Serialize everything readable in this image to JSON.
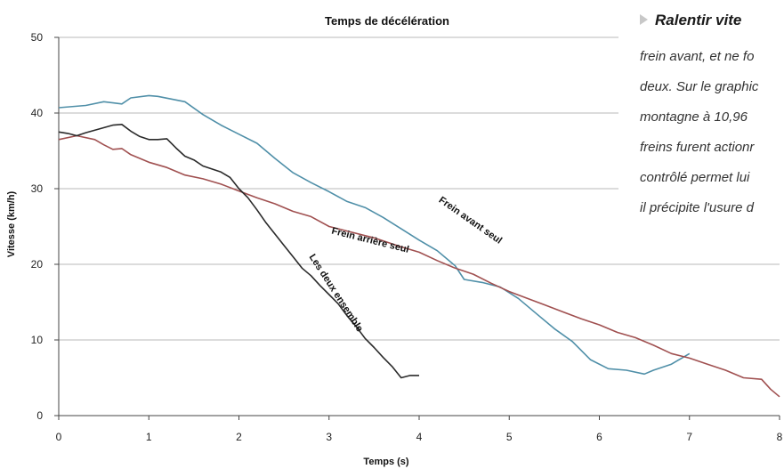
{
  "chart_data": {
    "type": "line",
    "title": "Temps de décélération",
    "xlabel": "Temps (s)",
    "ylabel": "Vitesse (km/h)",
    "xlim": [
      0,
      8
    ],
    "ylim": [
      0,
      50
    ],
    "xticks": [
      0,
      1,
      2,
      3,
      4,
      5,
      6,
      7,
      8
    ],
    "yticks": [
      0,
      10,
      20,
      30,
      40,
      50
    ],
    "grid": "horizontal",
    "series": [
      {
        "name": "Frein avant seul",
        "color": "#4f8fa8",
        "label_pos": [
          4.55,
          25.5
        ],
        "label_angle": 35,
        "points": [
          [
            0.0,
            40.7
          ],
          [
            0.3,
            41.0
          ],
          [
            0.5,
            41.5
          ],
          [
            0.7,
            41.2
          ],
          [
            0.8,
            42.0
          ],
          [
            1.0,
            42.3
          ],
          [
            1.1,
            42.2
          ],
          [
            1.4,
            41.5
          ],
          [
            1.6,
            39.8
          ],
          [
            1.8,
            38.4
          ],
          [
            2.0,
            37.2
          ],
          [
            2.2,
            36.0
          ],
          [
            2.4,
            34.0
          ],
          [
            2.6,
            32.1
          ],
          [
            2.8,
            30.8
          ],
          [
            3.0,
            29.6
          ],
          [
            3.2,
            28.3
          ],
          [
            3.4,
            27.5
          ],
          [
            3.6,
            26.2
          ],
          [
            3.8,
            24.7
          ],
          [
            4.0,
            23.2
          ],
          [
            4.2,
            21.8
          ],
          [
            4.4,
            19.8
          ],
          [
            4.5,
            18.0
          ],
          [
            4.7,
            17.6
          ],
          [
            4.9,
            17.0
          ],
          [
            5.1,
            15.5
          ],
          [
            5.3,
            13.5
          ],
          [
            5.5,
            11.5
          ],
          [
            5.7,
            9.8
          ],
          [
            5.9,
            7.4
          ],
          [
            6.1,
            6.2
          ],
          [
            6.3,
            6.0
          ],
          [
            6.5,
            5.5
          ],
          [
            6.6,
            6.0
          ],
          [
            6.8,
            6.8
          ],
          [
            6.9,
            7.5
          ],
          [
            7.0,
            8.2
          ]
        ]
      },
      {
        "name": "Frein arrière seul",
        "color": "#a05050",
        "label_pos": [
          3.45,
          22.8
        ],
        "label_angle": 14,
        "points": [
          [
            0.0,
            36.5
          ],
          [
            0.2,
            37.0
          ],
          [
            0.4,
            36.5
          ],
          [
            0.5,
            35.8
          ],
          [
            0.6,
            35.2
          ],
          [
            0.7,
            35.3
          ],
          [
            0.8,
            34.5
          ],
          [
            1.0,
            33.5
          ],
          [
            1.2,
            32.8
          ],
          [
            1.4,
            31.8
          ],
          [
            1.6,
            31.3
          ],
          [
            1.8,
            30.6
          ],
          [
            2.0,
            29.7
          ],
          [
            2.2,
            28.8
          ],
          [
            2.4,
            28.0
          ],
          [
            2.6,
            27.0
          ],
          [
            2.8,
            26.3
          ],
          [
            3.0,
            25.0
          ],
          [
            3.2,
            24.4
          ],
          [
            3.5,
            23.5
          ],
          [
            3.8,
            22.3
          ],
          [
            4.0,
            21.6
          ],
          [
            4.2,
            20.5
          ],
          [
            4.4,
            19.5
          ],
          [
            4.6,
            18.7
          ],
          [
            4.8,
            17.5
          ],
          [
            5.0,
            16.4
          ],
          [
            5.2,
            15.5
          ],
          [
            5.4,
            14.6
          ],
          [
            5.6,
            13.7
          ],
          [
            5.8,
            12.8
          ],
          [
            6.0,
            12.0
          ],
          [
            6.2,
            11.0
          ],
          [
            6.4,
            10.3
          ],
          [
            6.6,
            9.3
          ],
          [
            6.8,
            8.2
          ],
          [
            7.0,
            7.6
          ],
          [
            7.2,
            6.8
          ],
          [
            7.4,
            6.0
          ],
          [
            7.6,
            5.0
          ],
          [
            7.8,
            4.8
          ],
          [
            7.9,
            3.5
          ],
          [
            8.0,
            2.5
          ]
        ]
      },
      {
        "name": "Les deux ensemble",
        "color": "#2a2a2a",
        "label_pos": [
          3.05,
          16.0
        ],
        "label_angle": 57,
        "points": [
          [
            0.0,
            37.5
          ],
          [
            0.1,
            37.3
          ],
          [
            0.2,
            37.0
          ],
          [
            0.3,
            37.4
          ],
          [
            0.45,
            37.9
          ],
          [
            0.6,
            38.4
          ],
          [
            0.7,
            38.5
          ],
          [
            0.8,
            37.6
          ],
          [
            0.9,
            36.9
          ],
          [
            1.0,
            36.5
          ],
          [
            1.1,
            36.5
          ],
          [
            1.2,
            36.6
          ],
          [
            1.3,
            35.4
          ],
          [
            1.4,
            34.3
          ],
          [
            1.5,
            33.8
          ],
          [
            1.6,
            33.0
          ],
          [
            1.8,
            32.2
          ],
          [
            1.9,
            31.5
          ],
          [
            2.0,
            30.0
          ],
          [
            2.1,
            28.8
          ],
          [
            2.2,
            27.2
          ],
          [
            2.3,
            25.5
          ],
          [
            2.4,
            24.0
          ],
          [
            2.5,
            22.5
          ],
          [
            2.6,
            21.0
          ],
          [
            2.7,
            19.5
          ],
          [
            2.8,
            18.5
          ],
          [
            2.9,
            17.2
          ],
          [
            3.0,
            16.0
          ],
          [
            3.1,
            14.8
          ],
          [
            3.2,
            13.2
          ],
          [
            3.3,
            11.8
          ],
          [
            3.4,
            10.2
          ],
          [
            3.5,
            9.0
          ],
          [
            3.6,
            7.7
          ],
          [
            3.7,
            6.5
          ],
          [
            3.8,
            5.0
          ],
          [
            3.9,
            5.3
          ],
          [
            4.0,
            5.3
          ]
        ]
      }
    ]
  },
  "sidebar": {
    "heading": "Ralentir vite",
    "lines": [
      "frein avant, et ne fo",
      "deux. Sur le graphic",
      "montagne à 10,96",
      "freins furent actionr",
      "contrôlé permet lui",
      "il précipite l'usure d"
    ]
  }
}
